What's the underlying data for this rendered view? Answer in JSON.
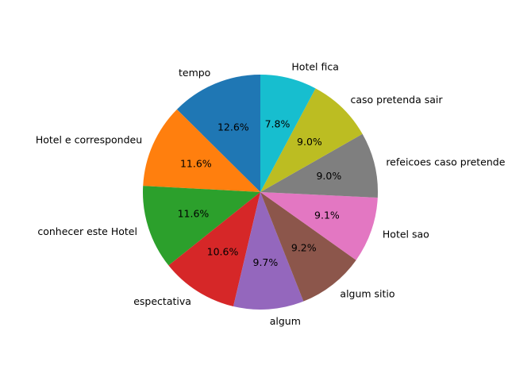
{
  "chart_data": {
    "type": "pie",
    "title": "",
    "start_angle_deg": 90,
    "direction": "counterclockwise",
    "slices": [
      {
        "label": "tempo",
        "value": 12.6,
        "pct_label": "12.6%",
        "color": "#1f77b4"
      },
      {
        "label": "Hotel e correspondeu",
        "value": 11.6,
        "pct_label": "11.6%",
        "color": "#ff7f0e"
      },
      {
        "label": "conhecer este Hotel",
        "value": 11.6,
        "pct_label": "11.6%",
        "color": "#2ca02c"
      },
      {
        "label": "espectativa",
        "value": 10.6,
        "pct_label": "10.6%",
        "color": "#d62728"
      },
      {
        "label": "algum",
        "value": 9.7,
        "pct_label": "9.7%",
        "color": "#9467bd"
      },
      {
        "label": "algum sitio",
        "value": 9.2,
        "pct_label": "9.2%",
        "color": "#8c564b"
      },
      {
        "label": "Hotel sao",
        "value": 9.1,
        "pct_label": "9.1%",
        "color": "#e377c2"
      },
      {
        "label": "refeicoes caso pretende",
        "value": 9.0,
        "pct_label": "9.0%",
        "color": "#7f7f7f"
      },
      {
        "label": "caso pretenda sair",
        "value": 9.0,
        "pct_label": "9.0%",
        "color": "#bcbd22"
      },
      {
        "label": "Hotel fica",
        "value": 7.8,
        "pct_label": "7.8%",
        "color": "#17becf"
      }
    ]
  }
}
